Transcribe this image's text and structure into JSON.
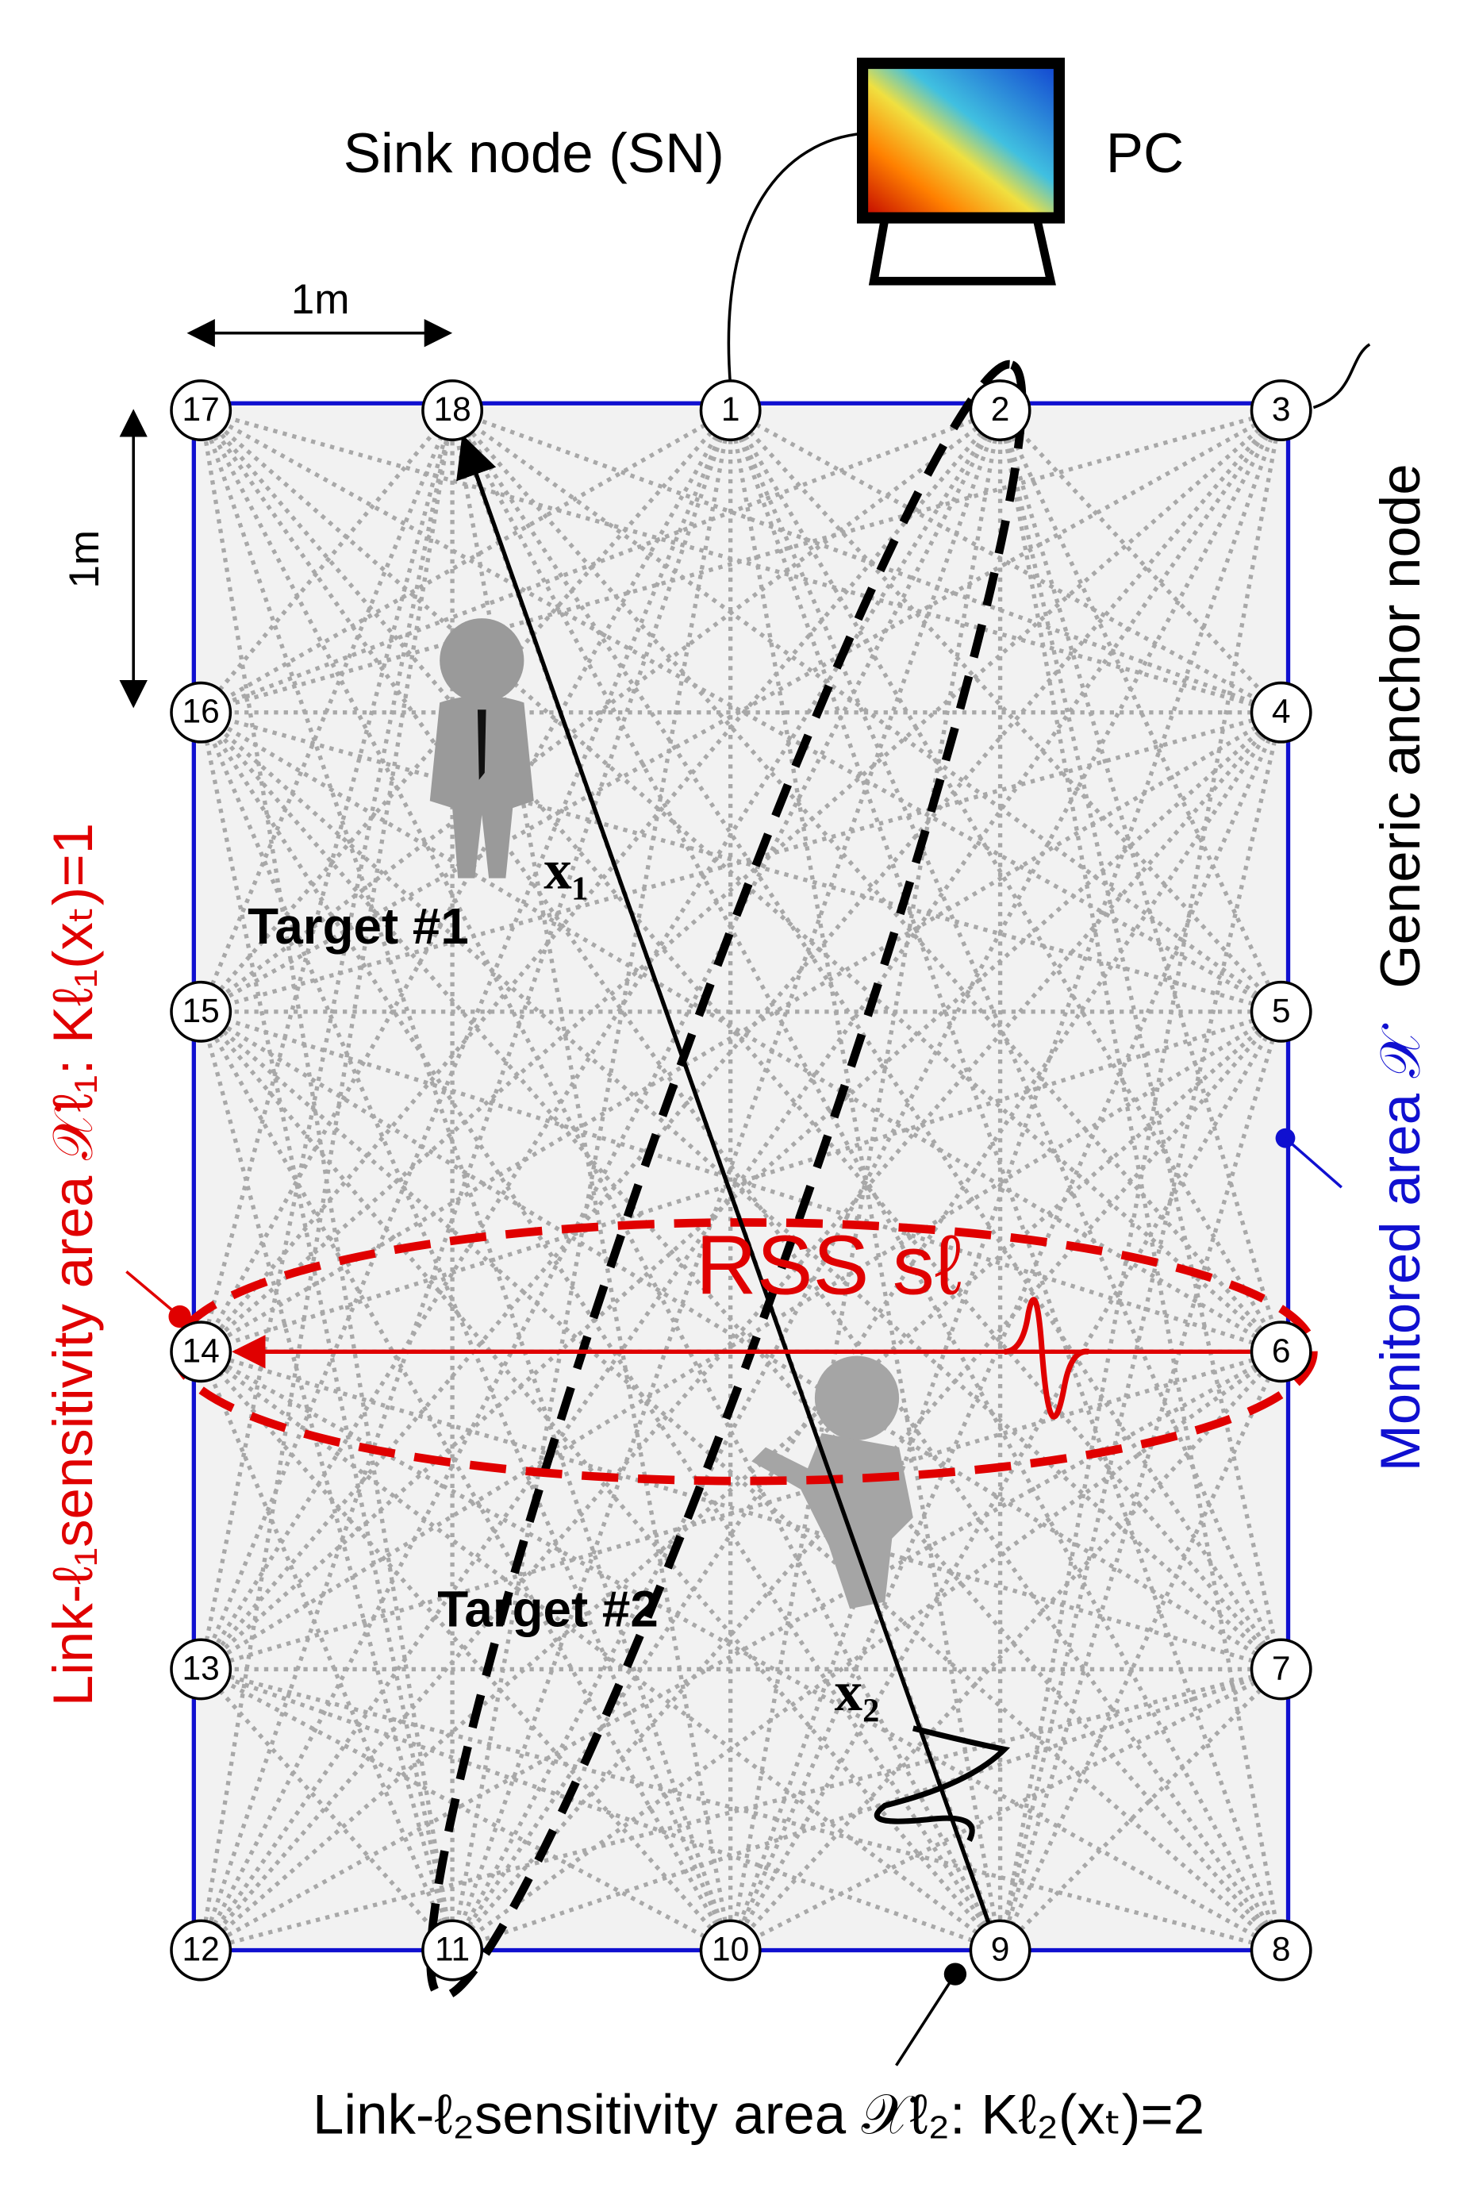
{
  "labels": {
    "sink_node": "Sink node (SN)",
    "pc": "PC",
    "generic_anchor": "Generic anchor node",
    "scale_x": "1m",
    "scale_y": "1m",
    "target1": "Target #1",
    "target2": "Target #2",
    "x1": "x₁",
    "x2": "x₂",
    "rss": "RSS sℓ",
    "monitored_area": "Monitored area 𝒳",
    "link1_area": "Link-ℓ₁sensitivity area 𝒳ℓ₁: Kℓ₁(xₜ)=1",
    "link2_area": "Link-ℓ₂sensitivity area 𝒳ℓ₂: Kℓ₂(xₜ)=2"
  },
  "nodes": [
    "1",
    "2",
    "3",
    "4",
    "5",
    "6",
    "7",
    "8",
    "9",
    "10",
    "11",
    "12",
    "13",
    "14",
    "15",
    "16",
    "17",
    "18"
  ]
}
